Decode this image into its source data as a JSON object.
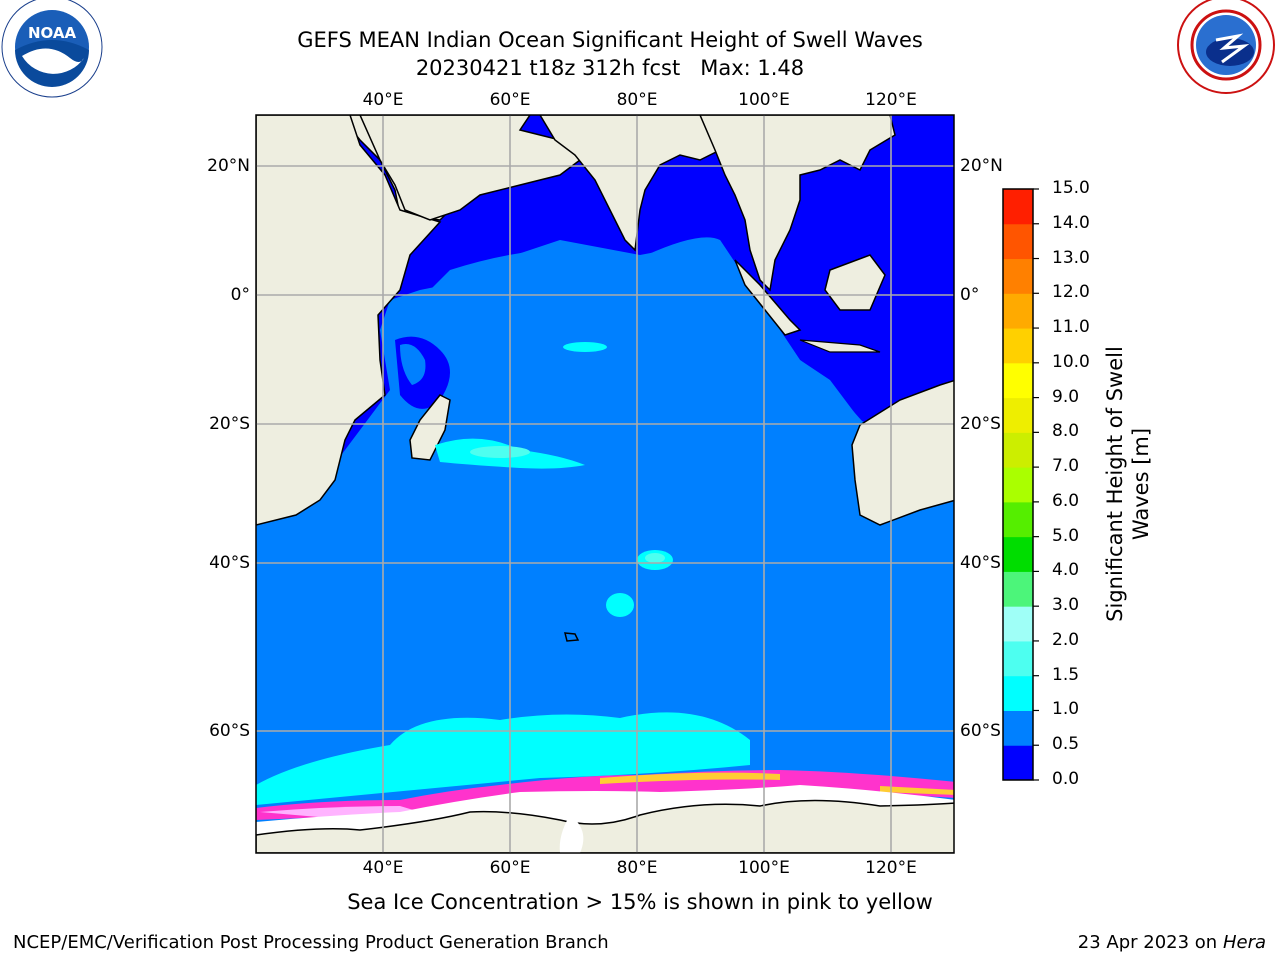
{
  "title": {
    "line1": "GEFS MEAN Indian Ocean Significant Height of Swell Waves",
    "line2": "20230421 t18z 312h fcst   Max: 1.48"
  },
  "logos": {
    "noaa": {
      "text": "NOAA",
      "ring_text": "NATIONAL OCEANIC AND ATMOSPHERIC ADMINISTRATION · U.S. DEPARTMENT OF COMMERCE"
    },
    "nws": {
      "ring_text": "NATIONAL WEATHER SERVICE"
    }
  },
  "map": {
    "lon_labels": [
      "40°E",
      "60°E",
      "80°E",
      "100°E",
      "120°E"
    ],
    "lat_labels": [
      "20°N",
      "0°",
      "20°S",
      "40°S",
      "60°S"
    ],
    "colors": {
      "ocean_low": "#0000ff",
      "ocean_mid": "#0080ff",
      "swell_high": "#00ffff",
      "swell_higher": "#4dffe6",
      "land": "#eeeee0",
      "ice_edge": "#ff33cc",
      "ice_mid": "#ffb3ff",
      "ice_yellow": "#ffcc33",
      "gridline": "#aaaaaa"
    }
  },
  "colorbar": {
    "title": "Significant Height of Swell Waves [m]",
    "ticks": [
      "0.0",
      "0.5",
      "1.0",
      "1.5",
      "2.0",
      "3.0",
      "4.0",
      "5.0",
      "6.0",
      "7.0",
      "8.0",
      "9.0",
      "10.0",
      "11.0",
      "12.0",
      "13.0",
      "14.0",
      "15.0"
    ],
    "colors": [
      "#0000ff",
      "#0080ff",
      "#00ffff",
      "#4dfff0",
      "#9ffff7",
      "#4cf57a",
      "#00dd00",
      "#55ee00",
      "#aaff00",
      "#ccee00",
      "#eeee00",
      "#ffff00",
      "#ffd000",
      "#ffaa00",
      "#ff8000",
      "#ff5500",
      "#ff1f00"
    ]
  },
  "note": "Sea Ice Concentration > 15% is shown in pink to yellow",
  "footer": {
    "left": "NCEP/EMC/Verification Post Processing Product Generation Branch",
    "right_prefix": "23 Apr 2023 on ",
    "right_host": "Hera"
  }
}
